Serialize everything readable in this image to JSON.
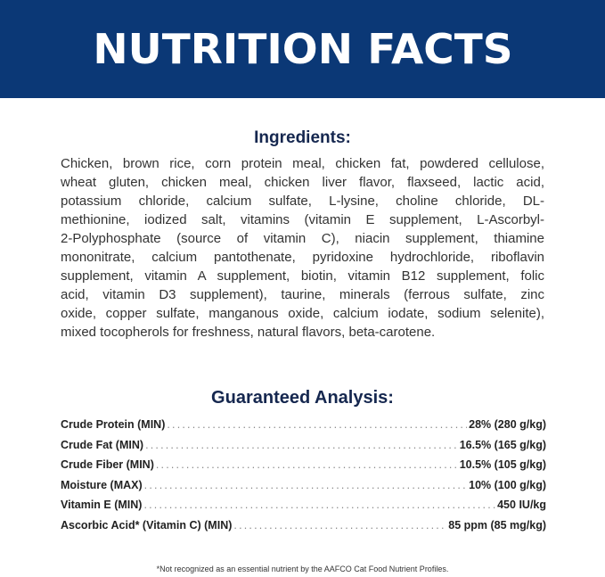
{
  "header": {
    "title": "NUTRITION FACTS",
    "bg_color": "#0b3876"
  },
  "ingredients": {
    "title": "Ingredients:",
    "lines": [
      "Chicken, brown rice, corn protein meal, chicken fat, powdered cellulose,",
      "wheat gluten, chicken meal, chicken liver flavor, flaxseed, lactic acid,",
      "potassium chloride, calcium sulfate, L-lysine, choline chloride, DL-",
      "methionine, iodized salt, vitamins (vitamin E supplement, L-Ascorbyl-",
      "2-Polyphosphate (source of vitamin C), niacin supplement, thiamine",
      "mononitrate, calcium pantothenate, pyridoxine hydrochloride, riboflavin",
      "supplement, vitamin A supplement, biotin, vitamin B12 supplement, folic",
      "acid, vitamin D3 supplement), taurine, minerals (ferrous sulfate, zinc",
      "oxide, copper sulfate, manganous oxide, calcium iodate, sodium selenite),",
      "mixed tocopherols for freshness, natural flavors, beta-carotene."
    ]
  },
  "analysis": {
    "title": "Guaranteed Analysis:",
    "rows": [
      {
        "label": "Crude Protein (MIN)",
        "value": "28% (280 g/kg)"
      },
      {
        "label": "Crude Fat (MIN)",
        "value": "16.5% (165 g/kg)"
      },
      {
        "label": "Crude Fiber (MIN)",
        "value": "10.5% (105 g/kg)"
      },
      {
        "label": "Moisture (MAX)",
        "value": "10% (100 g/kg)"
      },
      {
        "label": "Vitamin E (MIN)",
        "value": "450 IU/kg"
      },
      {
        "label": "Ascorbic Acid* (Vitamin C) (MIN)",
        "value": "85 ppm (85 mg/kg)"
      }
    ]
  },
  "footnote": "*Not recognized as an essential nutrient by the AAFCO Cat Food Nutrient Profiles."
}
